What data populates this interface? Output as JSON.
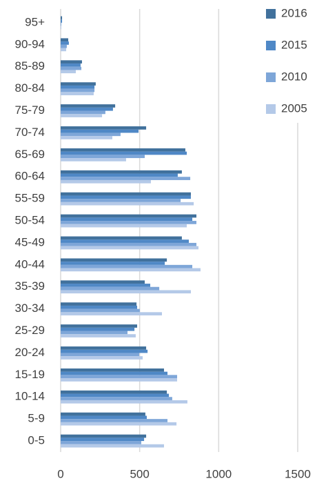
{
  "chart_data": {
    "type": "bar",
    "orientation": "horizontal",
    "categories": [
      "95+",
      "90-94",
      "85-89",
      "80-84",
      "75-79",
      "70-74",
      "65-69",
      "60-64",
      "55-59",
      "50-54",
      "45-49",
      "40-44",
      "35-39",
      "30-34",
      "25-29",
      "20-24",
      "15-19",
      "10-14",
      "5-9",
      "0-5"
    ],
    "series": [
      {
        "name": "2016",
        "color": "#41719c",
        "values": [
          9,
          48,
          135,
          222,
          345,
          541,
          789,
          767,
          824,
          859,
          767,
          672,
          532,
          480,
          484,
          541,
          654,
          672,
          536,
          541
        ]
      },
      {
        "name": "2015",
        "color": "#4f88c6",
        "values": [
          9,
          52,
          126,
          214,
          331,
          493,
          798,
          741,
          824,
          833,
          811,
          659,
          567,
          484,
          467,
          550,
          676,
          685,
          545,
          528
        ]
      },
      {
        "name": "2010",
        "color": "#7ea6d8",
        "values": [
          4,
          39,
          131,
          214,
          283,
          379,
          532,
          820,
          759,
          859,
          859,
          833,
          624,
          501,
          423,
          497,
          737,
          706,
          676,
          510
        ]
      },
      {
        "name": "2005",
        "color": "#b4c9e8",
        "values": [
          4,
          35,
          96,
          209,
          262,
          327,
          414,
          571,
          842,
          798,
          872,
          885,
          824,
          641,
          475,
          519,
          737,
          802,
          733,
          654
        ]
      }
    ],
    "xlim": [
      0,
      1500
    ],
    "xticks": [
      0,
      500,
      1000,
      1500
    ],
    "grid": true,
    "legend": "top-right"
  }
}
